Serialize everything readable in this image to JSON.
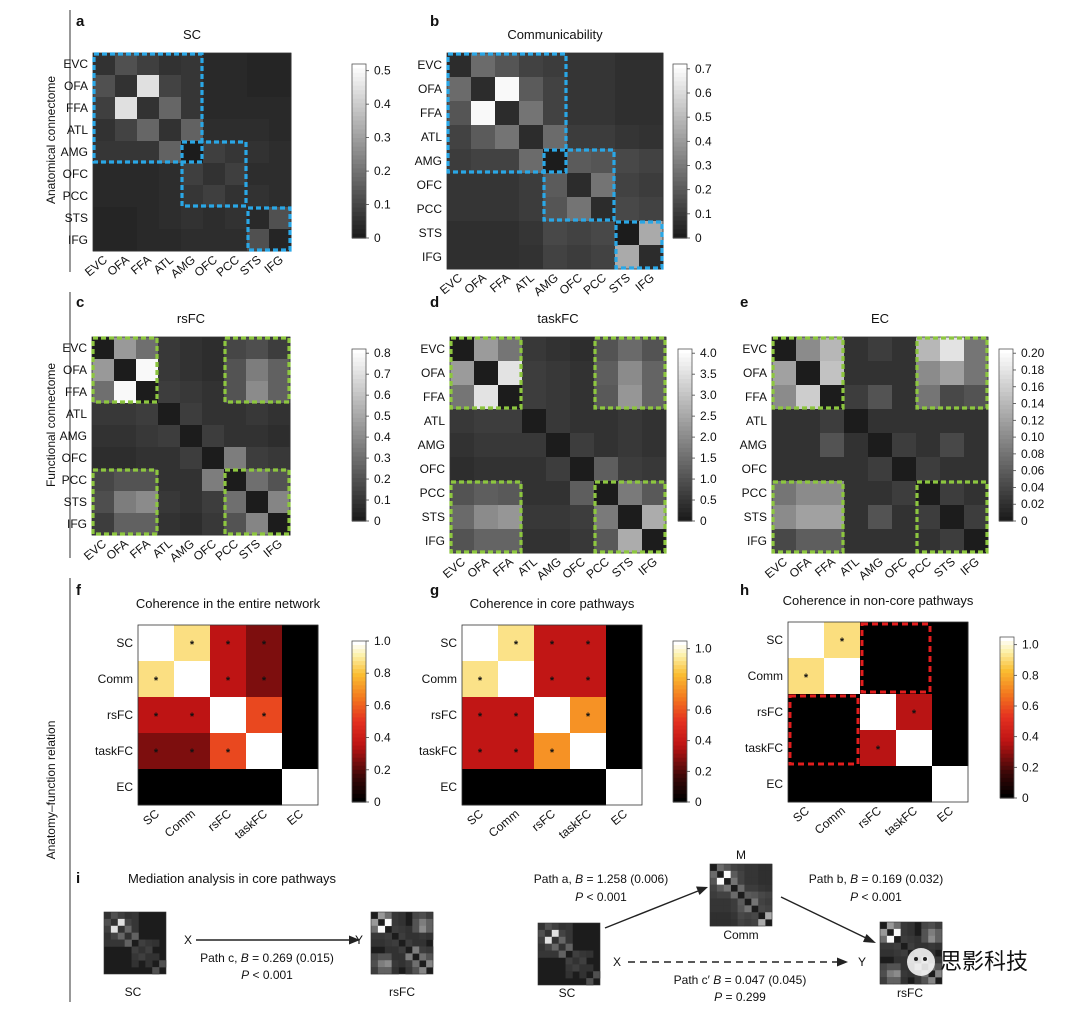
{
  "figure": {
    "side_labels": [
      "Anatomical connectome",
      "Functional connectome",
      "Anatomy–function relation"
    ],
    "watermark": "思影科技"
  },
  "regions": [
    "EVC",
    "OFA",
    "FFA",
    "ATL",
    "AMG",
    "OFC",
    "PCC",
    "STS",
    "IFG"
  ],
  "measures": [
    "SC",
    "Comm",
    "rsFC",
    "taskFC",
    "EC"
  ],
  "highlight_colors": {
    "blue": "#2aa7e6",
    "green": "#8dc63f",
    "red": "#e11d1d"
  },
  "chart_data": [
    {
      "panel": "a",
      "title": "SC",
      "type": "heatmap",
      "colormap": "gray",
      "vmin": 0,
      "vmax": 0.52,
      "colorbar_ticks": [
        "0",
        "0.1",
        "0.2",
        "0.3",
        "0.4",
        "0.5"
      ],
      "blocks": [
        [
          0,
          4,
          "blue"
        ],
        [
          4,
          6,
          "blue"
        ],
        [
          7,
          8,
          "blue"
        ]
      ],
      "values": [
        [
          0.05,
          0.12,
          0.08,
          0.05,
          0.06,
          0.03,
          0.03,
          0.02,
          0.02
        ],
        [
          0.12,
          0.05,
          0.45,
          0.09,
          0.06,
          0.03,
          0.03,
          0.02,
          0.02
        ],
        [
          0.08,
          0.45,
          0.05,
          0.17,
          0.06,
          0.03,
          0.03,
          0.03,
          0.03
        ],
        [
          0.05,
          0.09,
          0.17,
          0.05,
          0.16,
          0.04,
          0.04,
          0.04,
          0.03
        ],
        [
          0.06,
          0.06,
          0.06,
          0.16,
          0.0,
          0.08,
          0.06,
          0.05,
          0.04
        ],
        [
          0.03,
          0.03,
          0.03,
          0.04,
          0.08,
          0.05,
          0.08,
          0.04,
          0.04
        ],
        [
          0.03,
          0.03,
          0.03,
          0.04,
          0.06,
          0.08,
          0.05,
          0.05,
          0.04
        ],
        [
          0.02,
          0.02,
          0.03,
          0.04,
          0.05,
          0.04,
          0.05,
          0.03,
          0.12
        ],
        [
          0.02,
          0.02,
          0.03,
          0.03,
          0.04,
          0.04,
          0.04,
          0.12,
          0.02
        ]
      ]
    },
    {
      "panel": "b",
      "title": "Communicability",
      "type": "heatmap",
      "colormap": "gray",
      "vmin": 0,
      "vmax": 0.72,
      "colorbar_ticks": [
        "0",
        "0.1",
        "0.2",
        "0.3",
        "0.4",
        "0.5",
        "0.6",
        "0.7"
      ],
      "blocks": [
        [
          0,
          4,
          "blue"
        ],
        [
          4,
          6,
          "blue"
        ],
        [
          7,
          8,
          "blue"
        ]
      ],
      "values": [
        [
          0.05,
          0.25,
          0.18,
          0.12,
          0.1,
          0.08,
          0.08,
          0.06,
          0.06
        ],
        [
          0.25,
          0.05,
          0.7,
          0.2,
          0.12,
          0.08,
          0.08,
          0.06,
          0.06
        ],
        [
          0.18,
          0.7,
          0.05,
          0.28,
          0.12,
          0.08,
          0.08,
          0.06,
          0.06
        ],
        [
          0.12,
          0.2,
          0.28,
          0.05,
          0.25,
          0.1,
          0.1,
          0.08,
          0.07
        ],
        [
          0.1,
          0.12,
          0.12,
          0.25,
          0.0,
          0.2,
          0.18,
          0.14,
          0.12
        ],
        [
          0.08,
          0.08,
          0.08,
          0.1,
          0.2,
          0.05,
          0.28,
          0.12,
          0.1
        ],
        [
          0.08,
          0.08,
          0.08,
          0.1,
          0.18,
          0.28,
          0.05,
          0.14,
          0.12
        ],
        [
          0.06,
          0.06,
          0.06,
          0.08,
          0.14,
          0.12,
          0.14,
          0.0,
          0.45
        ],
        [
          0.06,
          0.06,
          0.06,
          0.07,
          0.12,
          0.1,
          0.12,
          0.45,
          0.05
        ]
      ]
    },
    {
      "panel": "c",
      "title": "rsFC",
      "type": "heatmap",
      "colormap": "gray",
      "vmin": 0,
      "vmax": 0.82,
      "colorbar_ticks": [
        "0",
        "0.1",
        "0.2",
        "0.3",
        "0.4",
        "0.5",
        "0.6",
        "0.7",
        "0.8"
      ],
      "blocks": [
        [
          0,
          2,
          "green"
        ],
        [
          6,
          8,
          "green"
        ]
      ],
      "cross_blocks": [
        [
          0,
          2,
          6,
          8,
          "green"
        ],
        [
          6,
          8,
          0,
          2,
          "green"
        ]
      ],
      "values": [
        [
          0.0,
          0.45,
          0.3,
          0.1,
          0.08,
          0.06,
          0.15,
          0.18,
          0.12
        ],
        [
          0.45,
          0.0,
          0.8,
          0.1,
          0.08,
          0.06,
          0.2,
          0.35,
          0.25
        ],
        [
          0.3,
          0.8,
          0.0,
          0.12,
          0.1,
          0.08,
          0.2,
          0.4,
          0.25
        ],
        [
          0.1,
          0.1,
          0.12,
          0.0,
          0.12,
          0.08,
          0.08,
          0.1,
          0.08
        ],
        [
          0.08,
          0.08,
          0.1,
          0.12,
          0.0,
          0.12,
          0.08,
          0.08,
          0.06
        ],
        [
          0.06,
          0.06,
          0.08,
          0.08,
          0.12,
          0.0,
          0.35,
          0.12,
          0.1
        ],
        [
          0.15,
          0.2,
          0.2,
          0.08,
          0.08,
          0.35,
          0.0,
          0.3,
          0.2
        ],
        [
          0.18,
          0.35,
          0.4,
          0.1,
          0.08,
          0.12,
          0.3,
          0.0,
          0.38
        ],
        [
          0.12,
          0.25,
          0.25,
          0.08,
          0.06,
          0.1,
          0.2,
          0.38,
          0.0
        ]
      ]
    },
    {
      "panel": "d",
      "title": "taskFC",
      "type": "heatmap",
      "colormap": "gray",
      "vmin": 0,
      "vmax": 4.1,
      "colorbar_ticks": [
        "0",
        "0.5",
        "1.0",
        "1.5",
        "2.0",
        "2.5",
        "3.0",
        "3.5",
        "4.0"
      ],
      "blocks": [
        [
          0,
          2,
          "green"
        ],
        [
          6,
          8,
          "green"
        ]
      ],
      "cross_blocks": [
        [
          0,
          2,
          6,
          8,
          "green"
        ],
        [
          6,
          8,
          0,
          2,
          "green"
        ]
      ],
      "values": [
        [
          0.0,
          2.3,
          1.6,
          0.5,
          0.4,
          0.3,
          1.0,
          1.4,
          1.0
        ],
        [
          2.3,
          0.0,
          3.6,
          0.6,
          0.5,
          0.4,
          1.2,
          2.0,
          1.3
        ],
        [
          1.6,
          3.6,
          0.0,
          0.6,
          0.5,
          0.4,
          1.1,
          2.2,
          1.3
        ],
        [
          0.5,
          0.6,
          0.6,
          0.0,
          0.5,
          0.4,
          0.4,
          0.5,
          0.4
        ],
        [
          0.4,
          0.5,
          0.5,
          0.5,
          0.0,
          0.6,
          0.4,
          0.5,
          0.4
        ],
        [
          0.3,
          0.4,
          0.4,
          0.4,
          0.6,
          0.0,
          1.2,
          0.6,
          0.5
        ],
        [
          1.0,
          1.2,
          1.1,
          0.4,
          0.4,
          1.2,
          0.0,
          1.7,
          1.1
        ],
        [
          1.4,
          2.0,
          2.2,
          0.5,
          0.5,
          0.6,
          1.7,
          0.0,
          2.6
        ],
        [
          1.0,
          1.3,
          1.3,
          0.4,
          0.4,
          0.5,
          1.1,
          2.6,
          0.0
        ]
      ]
    },
    {
      "panel": "e",
      "title": "EC",
      "type": "heatmap",
      "colormap": "gray",
      "vmin": 0,
      "vmax": 0.205,
      "colorbar_ticks": [
        "0",
        "0.02",
        "0.04",
        "0.06",
        "0.08",
        "0.10",
        "0.12",
        "0.14",
        "0.16",
        "0.18",
        "0.20"
      ],
      "blocks": [
        [
          0,
          2,
          "green"
        ],
        [
          6,
          8,
          "green"
        ]
      ],
      "cross_blocks": [
        [
          0,
          2,
          6,
          8,
          "green"
        ],
        [
          6,
          8,
          0,
          2,
          "green"
        ]
      ],
      "values": [
        [
          0.0,
          0.1,
          0.14,
          0.02,
          0.03,
          0.02,
          0.14,
          0.18,
          0.08
        ],
        [
          0.12,
          0.0,
          0.15,
          0.02,
          0.02,
          0.02,
          0.1,
          0.12,
          0.08
        ],
        [
          0.1,
          0.16,
          0.0,
          0.03,
          0.05,
          0.02,
          0.08,
          0.04,
          0.05
        ],
        [
          0.02,
          0.02,
          0.03,
          0.0,
          0.02,
          0.02,
          0.02,
          0.02,
          0.02
        ],
        [
          0.02,
          0.02,
          0.05,
          0.02,
          0.0,
          0.03,
          0.02,
          0.04,
          0.02
        ],
        [
          0.02,
          0.02,
          0.02,
          0.02,
          0.03,
          0.0,
          0.03,
          0.02,
          0.02
        ],
        [
          0.08,
          0.1,
          0.1,
          0.02,
          0.02,
          0.03,
          0.0,
          0.03,
          0.02
        ],
        [
          0.1,
          0.12,
          0.12,
          0.02,
          0.05,
          0.02,
          0.03,
          0.0,
          0.03
        ],
        [
          0.04,
          0.06,
          0.06,
          0.02,
          0.02,
          0.02,
          0.02,
          0.03,
          0.0
        ]
      ]
    },
    {
      "panel": "f",
      "title": "Coherence in the entire network",
      "type": "heatmap",
      "colormap": "hot",
      "vmin": 0,
      "vmax": 1.0,
      "colorbar_ticks": [
        "0",
        "0.2",
        "0.4",
        "0.6",
        "0.8",
        "1.0"
      ],
      "values": [
        [
          1.0,
          0.88,
          0.35,
          0.25,
          0.0
        ],
        [
          0.88,
          1.0,
          0.35,
          0.25,
          0.0
        ],
        [
          0.35,
          0.35,
          1.0,
          0.55,
          0.0
        ],
        [
          0.25,
          0.25,
          0.55,
          1.0,
          0.0
        ],
        [
          0.0,
          0.0,
          0.0,
          0.0,
          1.0
        ]
      ],
      "stars": [
        [
          0,
          1
        ],
        [
          0,
          2
        ],
        [
          0,
          3
        ],
        [
          1,
          0
        ],
        [
          1,
          2
        ],
        [
          1,
          3
        ],
        [
          2,
          0
        ],
        [
          2,
          1
        ],
        [
          2,
          3
        ],
        [
          3,
          0
        ],
        [
          3,
          1
        ],
        [
          3,
          2
        ]
      ]
    },
    {
      "panel": "g",
      "title": "Coherence in core pathways",
      "type": "heatmap",
      "colormap": "hot",
      "vmin": 0,
      "vmax": 1.05,
      "colorbar_ticks": [
        "0",
        "0.2",
        "0.4",
        "0.6",
        "0.8",
        "1.0"
      ],
      "values": [
        [
          1.05,
          0.93,
          0.38,
          0.38,
          0.0
        ],
        [
          0.93,
          1.05,
          0.38,
          0.38,
          0.0
        ],
        [
          0.38,
          0.38,
          1.05,
          0.74,
          0.0
        ],
        [
          0.38,
          0.38,
          0.74,
          1.05,
          0.0
        ],
        [
          0.0,
          0.0,
          0.0,
          0.0,
          1.05
        ]
      ],
      "stars": [
        [
          0,
          1
        ],
        [
          0,
          2
        ],
        [
          0,
          3
        ],
        [
          1,
          0
        ],
        [
          1,
          2
        ],
        [
          1,
          3
        ],
        [
          2,
          0
        ],
        [
          2,
          1
        ],
        [
          2,
          3
        ],
        [
          3,
          0
        ],
        [
          3,
          1
        ],
        [
          3,
          2
        ]
      ]
    },
    {
      "panel": "h",
      "title": "Coherence in non-core pathways",
      "type": "heatmap",
      "colormap": "hot",
      "vmin": 0,
      "vmax": 1.05,
      "colorbar_ticks": [
        "0",
        "0.2",
        "0.4",
        "0.6",
        "0.8",
        "1.0"
      ],
      "values": [
        [
          1.05,
          0.92,
          0.0,
          0.0,
          0.0
        ],
        [
          0.92,
          1.05,
          0.0,
          0.0,
          0.0
        ],
        [
          0.0,
          0.0,
          1.05,
          0.36,
          0.0
        ],
        [
          0.0,
          0.0,
          0.36,
          1.05,
          0.0
        ],
        [
          0.0,
          0.0,
          0.0,
          0.0,
          1.05
        ]
      ],
      "stars": [
        [
          0,
          1
        ],
        [
          1,
          0
        ],
        [
          2,
          3
        ],
        [
          3,
          2
        ]
      ]
    }
  ],
  "panel_i": {
    "label": "i",
    "title": "Mediation analysis in core pathways",
    "x_tag": "X",
    "y_tag": "Y",
    "m_tag": "M",
    "sc": "SC",
    "rsfc": "rsFC",
    "comm": "Comm",
    "path_c_b": "Path c, ",
    "path_c_val": "= 0.269 (0.015)",
    "path_c_p": "< 0.001",
    "path_a_b": "Path a, ",
    "path_a_val": "= 1.258 (0.006)",
    "path_a_p": "< 0.001",
    "path_b_b": "Path b, ",
    "path_b_val": "= 0.169 (0.032)",
    "path_b_p": "< 0.001",
    "path_cp_b": "Path c′ ",
    "path_cp_val": "= 0.047 (0.045)",
    "path_cp_p": "= 0.299",
    "B": "B",
    "P": "P"
  }
}
